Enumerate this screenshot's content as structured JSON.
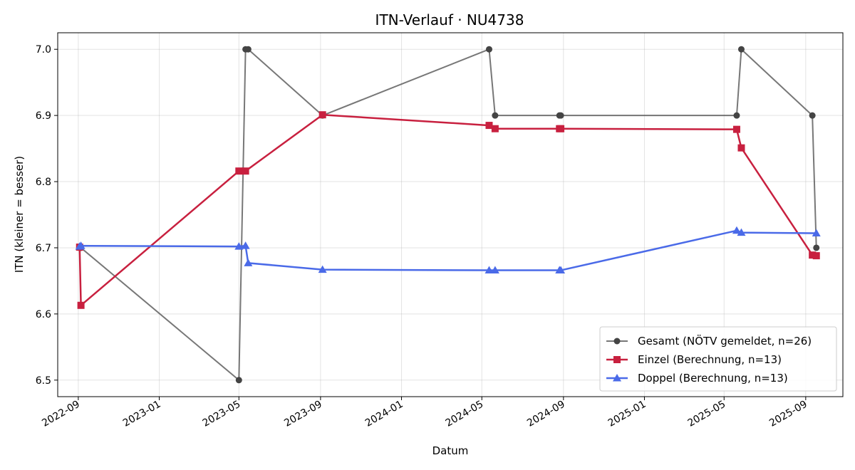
{
  "chart_data": {
    "type": "line",
    "title": "ITN-Verlauf · NU4738",
    "xlabel": "Datum",
    "ylabel": "ITN  (kleiner = besser)",
    "x_type": "date",
    "xlim": [
      "2022-08-01",
      "2025-10-27"
    ],
    "ylim": [
      6.475,
      7.025
    ],
    "yticks": [
      6.5,
      6.6,
      6.7,
      6.8,
      6.9,
      7.0
    ],
    "ytick_labels": [
      "6.5",
      "6.6",
      "6.7",
      "6.8",
      "6.9",
      "7.0"
    ],
    "xticks": [
      "2022-09-01",
      "2023-01-01",
      "2023-05-01",
      "2023-09-01",
      "2024-01-01",
      "2024-05-01",
      "2024-09-01",
      "2025-01-01",
      "2025-05-01",
      "2025-09-01"
    ],
    "xtick_labels": [
      "2022-09",
      "2023-01",
      "2023-05",
      "2023-09",
      "2024-01",
      "2024-05",
      "2024-09",
      "2025-01",
      "2025-05",
      "2025-09"
    ],
    "grid": true,
    "legend_position": "lower-right",
    "series": [
      {
        "name": "Gesamt (NÖTV gemeldet, n=26)",
        "color": "#555555",
        "marker": "circle",
        "points": [
          {
            "x": "2022-09-03",
            "y": 6.7
          },
          {
            "x": "2022-09-05",
            "y": 6.7
          },
          {
            "x": "2023-05-01",
            "y": 6.5
          },
          {
            "x": "2023-05-11",
            "y": 7.0
          },
          {
            "x": "2023-05-15",
            "y": 7.0
          },
          {
            "x": "2023-09-04",
            "y": 6.9
          },
          {
            "x": "2024-05-12",
            "y": 7.0
          },
          {
            "x": "2024-05-21",
            "y": 6.9
          },
          {
            "x": "2024-08-26",
            "y": 6.9
          },
          {
            "x": "2024-08-28",
            "y": 6.9
          },
          {
            "x": "2025-05-20",
            "y": 6.9
          },
          {
            "x": "2025-05-27",
            "y": 7.0
          },
          {
            "x": "2025-09-11",
            "y": 6.9
          },
          {
            "x": "2025-09-17",
            "y": 6.7
          }
        ]
      },
      {
        "name": "Einzel (Berechnung, n=13)",
        "color": "#c8203f",
        "marker": "square",
        "points": [
          {
            "x": "2022-09-03",
            "y": 6.701
          },
          {
            "x": "2022-09-05",
            "y": 6.613
          },
          {
            "x": "2023-05-01",
            "y": 6.816
          },
          {
            "x": "2023-05-11",
            "y": 6.816
          },
          {
            "x": "2023-09-04",
            "y": 6.901
          },
          {
            "x": "2024-05-12",
            "y": 6.885
          },
          {
            "x": "2024-05-21",
            "y": 6.88
          },
          {
            "x": "2024-08-26",
            "y": 6.88
          },
          {
            "x": "2024-08-28",
            "y": 6.88
          },
          {
            "x": "2025-05-20",
            "y": 6.879
          },
          {
            "x": "2025-05-27",
            "y": 6.851
          },
          {
            "x": "2025-09-11",
            "y": 6.689
          },
          {
            "x": "2025-09-17",
            "y": 6.688
          }
        ]
      },
      {
        "name": "Doppel (Berechnung, n=13)",
        "color": "#4a6ae8",
        "marker": "triangle",
        "points": [
          {
            "x": "2022-09-03",
            "y": 6.702
          },
          {
            "x": "2022-09-05",
            "y": 6.703
          },
          {
            "x": "2023-05-01",
            "y": 6.702
          },
          {
            "x": "2023-05-11",
            "y": 6.703
          },
          {
            "x": "2023-05-15",
            "y": 6.677
          },
          {
            "x": "2023-09-04",
            "y": 6.667
          },
          {
            "x": "2024-05-12",
            "y": 6.666
          },
          {
            "x": "2024-05-21",
            "y": 6.666
          },
          {
            "x": "2024-08-26",
            "y": 6.666
          },
          {
            "x": "2024-08-28",
            "y": 6.666
          },
          {
            "x": "2025-05-20",
            "y": 6.726
          },
          {
            "x": "2025-05-27",
            "y": 6.723
          },
          {
            "x": "2025-09-17",
            "y": 6.722
          }
        ]
      }
    ]
  }
}
